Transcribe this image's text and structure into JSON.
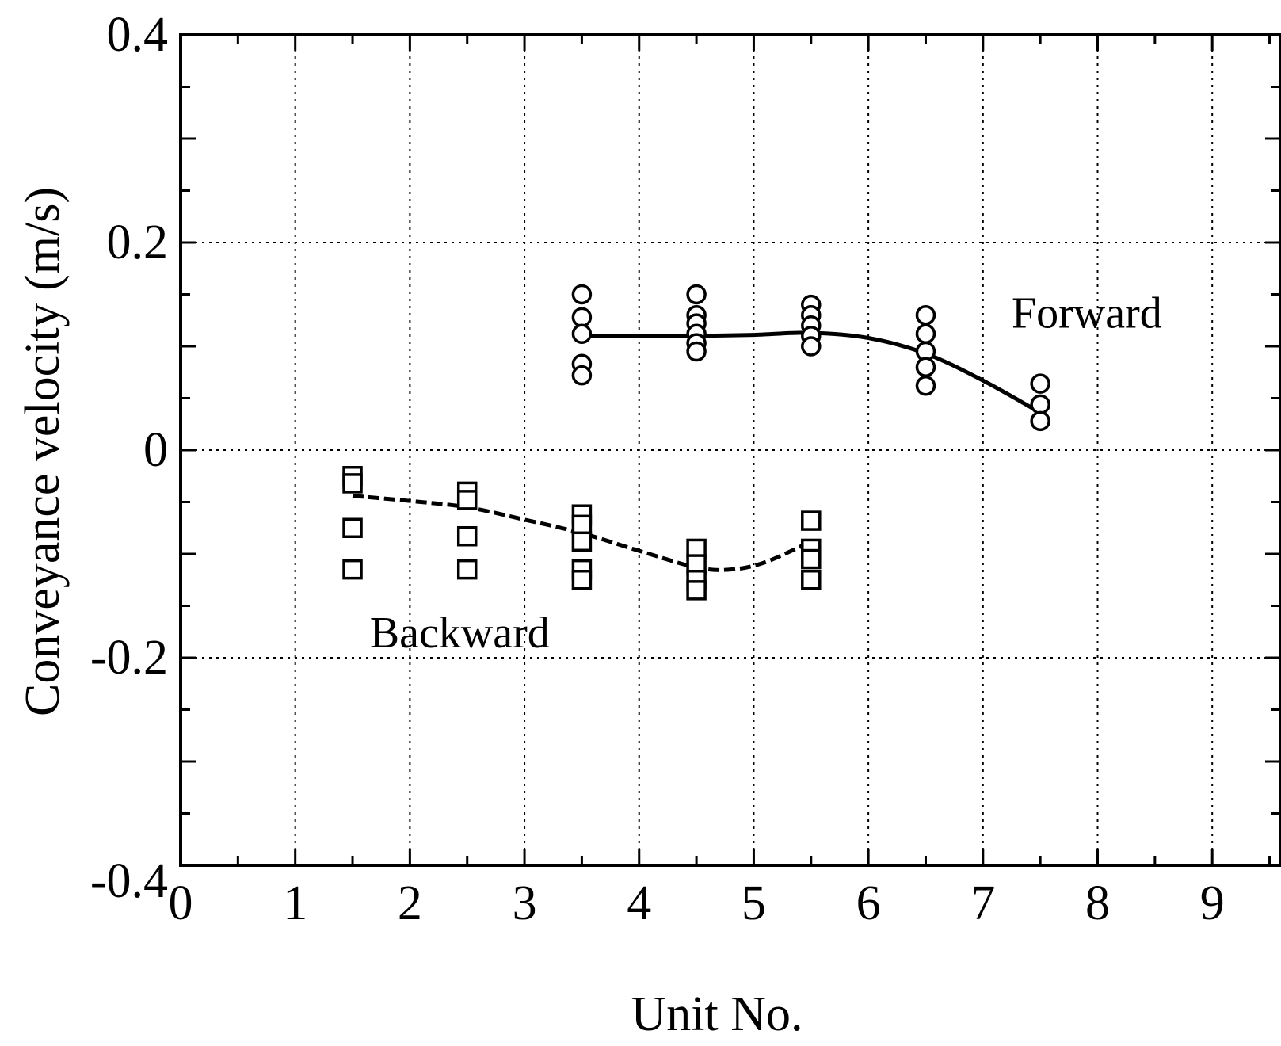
{
  "chart_data": {
    "type": "scatter",
    "title": "",
    "xlabel": "Unit No.",
    "ylabel": "Conveyance velocity  (m/s)",
    "xlim": [
      0,
      9.6
    ],
    "ylim": [
      -0.4,
      0.4
    ],
    "x_major_ticks": [
      0,
      1,
      2,
      3,
      4,
      5,
      6,
      7,
      8,
      9
    ],
    "y_major_ticks": [
      -0.4,
      -0.2,
      0,
      0.2,
      0.4
    ],
    "x_tick_labels": [
      "0",
      "1",
      "2",
      "3",
      "4",
      "5",
      "6",
      "7",
      "8",
      "9"
    ],
    "y_tick_labels": [
      "-0.4",
      "-0.2",
      "0",
      "0.2",
      "0.4"
    ],
    "grid_x": [
      1,
      2,
      3,
      4,
      5,
      6,
      7,
      8,
      9
    ],
    "grid_y": [
      -0.2,
      0,
      0.2
    ],
    "grid": true,
    "series": [
      {
        "name": "Forward",
        "marker": "circle",
        "points": [
          {
            "x": 3,
            "y": 0.15
          },
          {
            "x": 3,
            "y": 0.128
          },
          {
            "x": 3,
            "y": 0.112
          },
          {
            "x": 3,
            "y": 0.083
          },
          {
            "x": 3,
            "y": 0.072
          },
          {
            "x": 4,
            "y": 0.15
          },
          {
            "x": 4,
            "y": 0.13
          },
          {
            "x": 4,
            "y": 0.122
          },
          {
            "x": 4,
            "y": 0.112
          },
          {
            "x": 4,
            "y": 0.103
          },
          {
            "x": 4,
            "y": 0.095
          },
          {
            "x": 5,
            "y": 0.14
          },
          {
            "x": 5,
            "y": 0.13
          },
          {
            "x": 5,
            "y": 0.12
          },
          {
            "x": 5,
            "y": 0.11
          },
          {
            "x": 5,
            "y": 0.1
          },
          {
            "x": 6,
            "y": 0.13
          },
          {
            "x": 6,
            "y": 0.112
          },
          {
            "x": 6,
            "y": 0.095
          },
          {
            "x": 6,
            "y": 0.08
          },
          {
            "x": 6,
            "y": 0.062
          },
          {
            "x": 7,
            "y": 0.064
          },
          {
            "x": 7,
            "y": 0.044
          },
          {
            "x": 7,
            "y": 0.028
          }
        ],
        "fit_line": {
          "style": "solid",
          "x": [
            3,
            3.5,
            4,
            4.5,
            5,
            5.5,
            6,
            6.5,
            7
          ],
          "y": [
            0.11,
            0.11,
            0.11,
            0.111,
            0.113,
            0.108,
            0.093,
            0.067,
            0.036
          ]
        }
      },
      {
        "name": "Backward",
        "marker": "square",
        "points": [
          {
            "x": 1,
            "y": -0.025
          },
          {
            "x": 1,
            "y": -0.032
          },
          {
            "x": 1,
            "y": -0.075
          },
          {
            "x": 1,
            "y": -0.115
          },
          {
            "x": 2,
            "y": -0.04
          },
          {
            "x": 2,
            "y": -0.048
          },
          {
            "x": 2,
            "y": -0.083
          },
          {
            "x": 2,
            "y": -0.115
          },
          {
            "x": 3,
            "y": -0.062
          },
          {
            "x": 3,
            "y": -0.072
          },
          {
            "x": 3,
            "y": -0.088
          },
          {
            "x": 3,
            "y": -0.115
          },
          {
            "x": 3,
            "y": -0.125
          },
          {
            "x": 4,
            "y": -0.095
          },
          {
            "x": 4,
            "y": -0.11
          },
          {
            "x": 4,
            "y": -0.125
          },
          {
            "x": 4,
            "y": -0.135
          },
          {
            "x": 5,
            "y": -0.068
          },
          {
            "x": 5,
            "y": -0.095
          },
          {
            "x": 5,
            "y": -0.105
          },
          {
            "x": 5,
            "y": -0.125
          }
        ],
        "fit_line": {
          "style": "dashed",
          "x": [
            1,
            1.5,
            2,
            2.5,
            3,
            3.5,
            4,
            4.3,
            4.6,
            5
          ],
          "y": [
            -0.044,
            -0.049,
            -0.055,
            -0.067,
            -0.08,
            -0.097,
            -0.113,
            -0.115,
            -0.108,
            -0.088
          ]
        }
      }
    ],
    "annotations": [
      {
        "text": "Forward",
        "x": 7.25,
        "y": 0.118
      },
      {
        "text": "Backward",
        "x": 1.65,
        "y": -0.19
      }
    ]
  }
}
